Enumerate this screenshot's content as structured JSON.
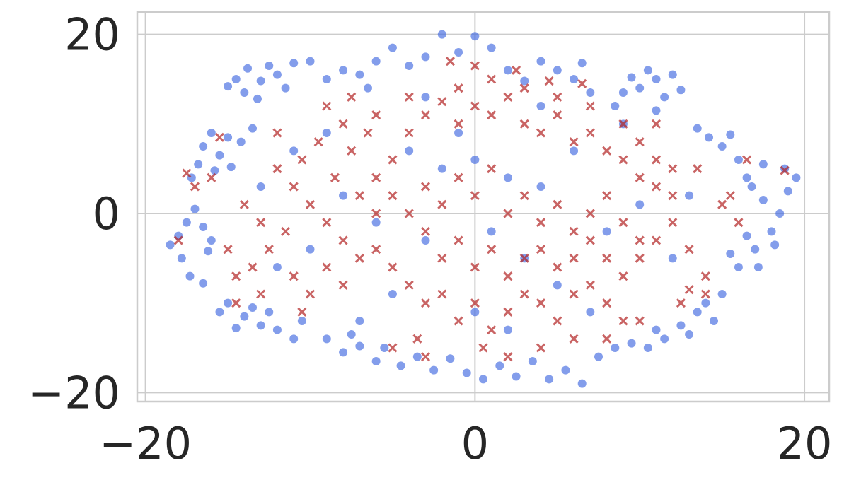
{
  "chart_data": {
    "type": "scatter",
    "title": "",
    "xlabel": "",
    "ylabel": "",
    "xlim": [
      -20.5,
      21.5
    ],
    "ylim": [
      -21.0,
      22.5
    ],
    "x_ticks": [
      -20,
      0,
      20
    ],
    "y_ticks": [
      -20,
      0,
      20
    ],
    "x_tick_labels": [
      "−20",
      "0",
      "20"
    ],
    "y_tick_labels": [
      "−20",
      "0",
      "20"
    ],
    "grid": true,
    "legend": "none",
    "series": [
      {
        "marker": "circle",
        "color": "#4169e1",
        "points": [
          [
            -14.5,
            15
          ],
          [
            -13.8,
            16.2
          ],
          [
            -13,
            14.8
          ],
          [
            -12.5,
            16.5
          ],
          [
            -14,
            13.5
          ],
          [
            -12,
            15.5
          ],
          [
            -11.5,
            14
          ],
          [
            -13.2,
            12.8
          ],
          [
            -11,
            16.8
          ],
          [
            -15,
            14.2
          ],
          [
            -16,
            9
          ],
          [
            -15,
            8.5
          ],
          [
            -16.5,
            7.5
          ],
          [
            -15.5,
            6.5
          ],
          [
            -14.2,
            8
          ],
          [
            -13.5,
            9.5
          ],
          [
            -16.8,
            5.5
          ],
          [
            -17.2,
            4
          ],
          [
            -15.8,
            4.8
          ],
          [
            -14.8,
            5.2
          ],
          [
            -17.5,
            -1
          ],
          [
            -18,
            -2.5
          ],
          [
            -16.5,
            -1.5
          ],
          [
            -17,
            0.5
          ],
          [
            -16,
            -3
          ],
          [
            -18.5,
            -3.5
          ],
          [
            -17.8,
            -5
          ],
          [
            -16.2,
            -4.2
          ],
          [
            -17.3,
            -7
          ],
          [
            -16.5,
            -7.8
          ],
          [
            -15,
            -10
          ],
          [
            -14,
            -11.5
          ],
          [
            -13,
            -12.5
          ],
          [
            -12,
            -13
          ],
          [
            -14.5,
            -12.8
          ],
          [
            -11,
            -14
          ],
          [
            -13.5,
            -10.5
          ],
          [
            -15.5,
            -11
          ],
          [
            -12.5,
            -11
          ],
          [
            -10.5,
            -12
          ],
          [
            -9,
            -14
          ],
          [
            -8,
            -15.5
          ],
          [
            -7,
            -14.8
          ],
          [
            -6,
            -16.5
          ],
          [
            -7.5,
            -13.5
          ],
          [
            -5.5,
            -15
          ],
          [
            -4.5,
            -17
          ],
          [
            -3.5,
            -16
          ],
          [
            -2.5,
            -17.5
          ],
          [
            -1.5,
            -16.2
          ],
          [
            -0.5,
            -17.8
          ],
          [
            0.5,
            -18.5
          ],
          [
            1.5,
            -17
          ],
          [
            2.5,
            -18.2
          ],
          [
            3.5,
            -16.5
          ],
          [
            4.5,
            -18.5
          ],
          [
            5.5,
            -17.5
          ],
          [
            6.5,
            -19
          ],
          [
            7.5,
            -16
          ],
          [
            8.5,
            -15
          ],
          [
            9.5,
            -14.5
          ],
          [
            10.5,
            -15
          ],
          [
            11.5,
            -14
          ],
          [
            12.5,
            -12.5
          ],
          [
            13.5,
            -11
          ],
          [
            14.5,
            -12
          ],
          [
            13,
            -13.5
          ],
          [
            11,
            -13
          ],
          [
            14,
            -10
          ],
          [
            15,
            -9
          ],
          [
            16,
            -6
          ],
          [
            17,
            -4
          ],
          [
            18,
            -2
          ],
          [
            18.5,
            0
          ],
          [
            17.5,
            1.5
          ],
          [
            19,
            2.5
          ],
          [
            18.2,
            -3.5
          ],
          [
            16.5,
            -2.5
          ],
          [
            17.2,
            -6
          ],
          [
            15.5,
            -4.5
          ],
          [
            16.5,
            4
          ],
          [
            17.5,
            5.5
          ],
          [
            18.8,
            5
          ],
          [
            19.5,
            4
          ],
          [
            16,
            6
          ],
          [
            15,
            7.5
          ],
          [
            14.2,
            8.5
          ],
          [
            13.5,
            9.5
          ],
          [
            15.5,
            8.8
          ],
          [
            16.8,
            3
          ],
          [
            10,
            14
          ],
          [
            11,
            15
          ],
          [
            12,
            15.5
          ],
          [
            11.5,
            13
          ],
          [
            10.5,
            16
          ],
          [
            9,
            13.5
          ],
          [
            12.5,
            13.8
          ],
          [
            9.5,
            15.2
          ],
          [
            11,
            11.5
          ],
          [
            8.5,
            12
          ],
          [
            5,
            16
          ],
          [
            6,
            15
          ],
          [
            7,
            13.5
          ],
          [
            4,
            17
          ],
          [
            3,
            14.8
          ],
          [
            6.5,
            16.8
          ],
          [
            2,
            16
          ],
          [
            1,
            18.5
          ],
          [
            0,
            19.8
          ],
          [
            -1,
            18
          ],
          [
            -2,
            20
          ],
          [
            -3,
            17.5
          ],
          [
            -4,
            16.5
          ],
          [
            -5,
            18.5
          ],
          [
            -6,
            17
          ],
          [
            -7,
            15.5
          ],
          [
            -6.5,
            14
          ],
          [
            -8,
            16
          ],
          [
            -9,
            15
          ],
          [
            -10,
            17
          ],
          [
            -4,
            7
          ],
          [
            -2,
            5
          ],
          [
            0,
            6
          ],
          [
            2,
            4
          ],
          [
            4,
            3
          ],
          [
            -6,
            -1
          ],
          [
            -3,
            -3
          ],
          [
            1,
            -2
          ],
          [
            3,
            -5
          ],
          [
            5,
            -8
          ],
          [
            -8,
            2
          ],
          [
            -10,
            -4
          ],
          [
            8,
            -2
          ],
          [
            10,
            1
          ],
          [
            -1,
            9
          ],
          [
            6,
            7
          ],
          [
            -5,
            -9
          ],
          [
            0,
            -11
          ],
          [
            7,
            -11
          ],
          [
            -9,
            9
          ],
          [
            -13,
            3
          ],
          [
            -12,
            -6
          ],
          [
            12,
            -5
          ],
          [
            13,
            2
          ],
          [
            -11,
            7
          ],
          [
            -3,
            13
          ],
          [
            4,
            12
          ],
          [
            9,
            10
          ],
          [
            -7,
            -12
          ],
          [
            2,
            -13
          ]
        ]
      },
      {
        "marker": "x",
        "color": "#b22222",
        "points": [
          [
            -12,
            5
          ],
          [
            -11,
            3
          ],
          [
            -10,
            1
          ],
          [
            -9,
            -1
          ],
          [
            -8,
            -3
          ],
          [
            -11.5,
            -2
          ],
          [
            -10.5,
            6
          ],
          [
            -9.5,
            8
          ],
          [
            -8.5,
            4
          ],
          [
            -7.5,
            7
          ],
          [
            -7,
            2
          ],
          [
            -6,
            4
          ],
          [
            -5,
            6
          ],
          [
            -4,
            9
          ],
          [
            -3,
            11
          ],
          [
            -2,
            12.5
          ],
          [
            -1,
            10
          ],
          [
            0,
            12
          ],
          [
            1,
            11
          ],
          [
            2,
            13
          ],
          [
            3,
            10
          ],
          [
            4,
            9
          ],
          [
            5,
            11
          ],
          [
            6,
            8
          ],
          [
            7,
            9
          ],
          [
            8,
            7
          ],
          [
            9,
            6
          ],
          [
            10,
            4
          ],
          [
            11,
            3
          ],
          [
            12,
            2
          ],
          [
            -6,
            -4
          ],
          [
            -5,
            -6
          ],
          [
            -4,
            -8
          ],
          [
            -3,
            -10
          ],
          [
            -2,
            -9
          ],
          [
            -1,
            -12
          ],
          [
            0,
            -10
          ],
          [
            1,
            -13
          ],
          [
            2,
            -11
          ],
          [
            3,
            -9
          ],
          [
            4,
            -10
          ],
          [
            5,
            -12
          ],
          [
            6,
            -9
          ],
          [
            7,
            -8
          ],
          [
            8,
            -10
          ],
          [
            9,
            -7
          ],
          [
            10,
            -5
          ],
          [
            11,
            -3
          ],
          [
            12,
            -1
          ],
          [
            13,
            -4
          ],
          [
            -13,
            -1
          ],
          [
            -14,
            1
          ],
          [
            -12.5,
            -4
          ],
          [
            -13.5,
            -6
          ],
          [
            -11,
            -7
          ],
          [
            -10,
            -9
          ],
          [
            -9,
            -6
          ],
          [
            -8,
            -8
          ],
          [
            -7,
            -5
          ],
          [
            -6,
            0
          ],
          [
            -5,
            2
          ],
          [
            -4,
            0
          ],
          [
            -3,
            3
          ],
          [
            -2,
            1
          ],
          [
            -1,
            4
          ],
          [
            0,
            2
          ],
          [
            1,
            5
          ],
          [
            2,
            0
          ],
          [
            3,
            2
          ],
          [
            4,
            -1
          ],
          [
            5,
            1
          ],
          [
            6,
            -2
          ],
          [
            7,
            0
          ],
          [
            8,
            2
          ],
          [
            9,
            -1
          ],
          [
            10,
            -3
          ],
          [
            -3,
            -2
          ],
          [
            -2,
            -5
          ],
          [
            -1,
            -3
          ],
          [
            0,
            -6
          ],
          [
            1,
            -4
          ],
          [
            2,
            -7
          ],
          [
            3,
            -5
          ],
          [
            4,
            -4
          ],
          [
            5,
            -6
          ],
          [
            6,
            -5
          ],
          [
            7,
            -3
          ],
          [
            8,
            -5
          ],
          [
            -8,
            10
          ],
          [
            -6,
            11
          ],
          [
            -4,
            13
          ],
          [
            -1,
            14
          ],
          [
            1,
            15
          ],
          [
            3,
            14
          ],
          [
            5,
            13
          ],
          [
            7,
            12
          ],
          [
            9,
            10
          ],
          [
            10,
            8
          ],
          [
            11,
            6
          ],
          [
            12,
            5
          ],
          [
            -16,
            4
          ],
          [
            -15,
            -4
          ],
          [
            -14.5,
            -7
          ],
          [
            14,
            -7
          ],
          [
            15,
            1
          ],
          [
            13.5,
            5
          ],
          [
            -17,
            3
          ],
          [
            16,
            -1
          ],
          [
            -12,
            9
          ],
          [
            11,
            10
          ],
          [
            0,
            16.5
          ],
          [
            -1.5,
            17
          ],
          [
            2.5,
            16
          ],
          [
            -5,
            -15
          ],
          [
            -3,
            -16
          ],
          [
            2,
            -16
          ],
          [
            4,
            -15
          ],
          [
            6,
            -14
          ],
          [
            8,
            -14
          ],
          [
            10,
            -12
          ],
          [
            14,
            -9
          ],
          [
            15.5,
            2
          ],
          [
            16.5,
            6
          ],
          [
            18.8,
            4.8
          ],
          [
            -18,
            -3
          ],
          [
            -17.5,
            4.5
          ],
          [
            -15.5,
            8.5
          ],
          [
            -14.5,
            -10
          ],
          [
            12.5,
            -10
          ],
          [
            -3.5,
            -14
          ],
          [
            -9,
            12
          ],
          [
            -7.5,
            13
          ],
          [
            6.5,
            14.5
          ],
          [
            4.5,
            14.8
          ],
          [
            -10.5,
            -11
          ],
          [
            0.5,
            -15
          ],
          [
            9,
            -12
          ],
          [
            13,
            -8.5
          ],
          [
            -13,
            -9
          ],
          [
            -6.5,
            9
          ]
        ]
      }
    ]
  }
}
